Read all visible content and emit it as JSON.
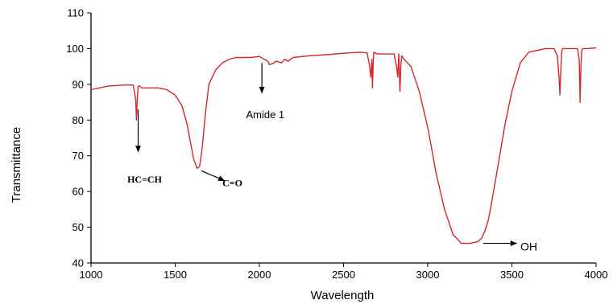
{
  "chart_data": {
    "type": "line",
    "xlabel": "Wavelength",
    "ylabel": "Transmittance",
    "xlim": [
      1000,
      4000
    ],
    "ylim": [
      40,
      110
    ],
    "xticks": [
      "1000",
      "1500",
      "2000",
      "2500",
      "3000",
      "3500",
      "4000"
    ],
    "yticks": [
      "40",
      "50",
      "60",
      "70",
      "80",
      "90",
      "100",
      "110"
    ],
    "grid": false,
    "line_color": "#d62728",
    "series": [
      {
        "x": [
          1000,
          1100,
          1200,
          1250,
          1265,
          1270,
          1275,
          1280,
          1290,
          1300,
          1400,
          1450,
          1500,
          1540,
          1570,
          1590,
          1610,
          1630,
          1645,
          1660,
          1680,
          1700,
          1740,
          1780,
          1820,
          1860,
          1900,
          1950,
          2000,
          2030,
          2050,
          2060,
          2080,
          2100,
          2130,
          2150,
          2170,
          2200,
          2300,
          2400,
          2500,
          2600,
          2640,
          2655,
          2662,
          2668,
          2672,
          2676,
          2680,
          2700,
          2750,
          2800,
          2815,
          2822,
          2828,
          2835,
          2840,
          2845,
          2860,
          2900,
          2950,
          3000,
          3050,
          3100,
          3150,
          3200,
          3250,
          3300,
          3320,
          3340,
          3360,
          3380,
          3420,
          3460,
          3500,
          3550,
          3600,
          3650,
          3700,
          3750,
          3770,
          3780,
          3785,
          3790,
          3795,
          3800,
          3820,
          3860,
          3890,
          3900,
          3905,
          3910,
          3915,
          3920,
          3950,
          4000
        ],
        "y": [
          88.5,
          89.5,
          89.8,
          89.8,
          86,
          80,
          86,
          89.5,
          89.5,
          89,
          89,
          88.5,
          87,
          84,
          79,
          74,
          69,
          66.5,
          67,
          72,
          82,
          90,
          94,
          96,
          97,
          97.5,
          97.5,
          97.5,
          97.8,
          97,
          96.5,
          95.5,
          95.8,
          96.5,
          96,
          97,
          96.5,
          97.5,
          98,
          98.3,
          98.7,
          99,
          98.8,
          95,
          92,
          97,
          89,
          96,
          99,
          98.5,
          98.5,
          98.5,
          95,
          92,
          98.5,
          88,
          95,
          98,
          97,
          95,
          88,
          78,
          65,
          55,
          48,
          45.5,
          45.5,
          46,
          47,
          49,
          52,
          57,
          68,
          79,
          88,
          96,
          99,
          99.5,
          100,
          100,
          98,
          92,
          87,
          93,
          99,
          100,
          100,
          100,
          100,
          97,
          85,
          95,
          99.5,
          100,
          100,
          100.2
        ]
      }
    ],
    "annotations": [
      {
        "text": "HC=CH",
        "x": 1280,
        "y": 73,
        "style": "serif-bold"
      },
      {
        "text": "C=O",
        "x": 1640,
        "y": 66,
        "style": "serif-bold"
      },
      {
        "text": "Amide 1",
        "x": 2020,
        "y": 97,
        "style": "sans"
      },
      {
        "text": "OH",
        "x": 3310,
        "y": 45.5,
        "style": "sans"
      }
    ]
  }
}
